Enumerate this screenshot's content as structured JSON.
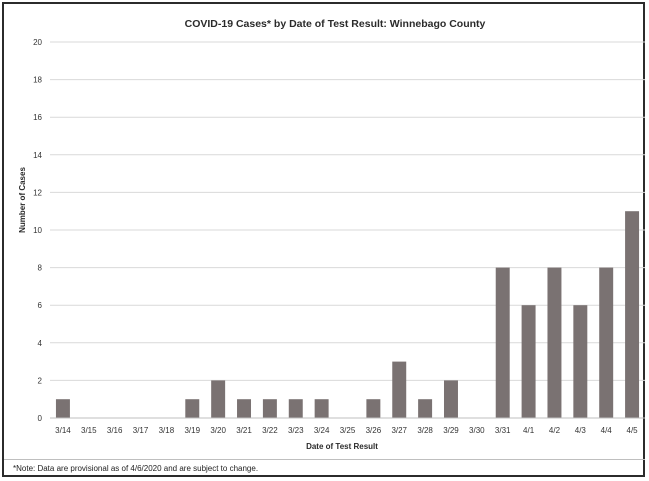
{
  "chart_data": {
    "type": "bar",
    "title": "COVID-19 Cases* by Date of Test Result: Winnebago County",
    "xlabel": "Date of Test Result",
    "ylabel": "Number of Cases",
    "ylim": [
      0,
      20
    ],
    "yticks": [
      0,
      2,
      4,
      6,
      8,
      10,
      12,
      14,
      16,
      18,
      20
    ],
    "grid": true,
    "legend": "none",
    "bar_color": "#7a7272",
    "categories": [
      "3/14",
      "3/15",
      "3/16",
      "3/17",
      "3/18",
      "3/19",
      "3/20",
      "3/21",
      "3/22",
      "3/23",
      "3/24",
      "3/25",
      "3/26",
      "3/27",
      "3/28",
      "3/29",
      "3/30",
      "3/31",
      "4/1",
      "4/2",
      "4/3",
      "4/4",
      "4/5"
    ],
    "values": [
      1,
      0,
      0,
      0,
      0,
      1,
      2,
      1,
      1,
      1,
      1,
      0,
      1,
      3,
      1,
      2,
      0,
      8,
      6,
      8,
      6,
      8,
      11
    ]
  },
  "footnote": "*Note: Data are provisional as of 4/6/2020 and are subject to change."
}
